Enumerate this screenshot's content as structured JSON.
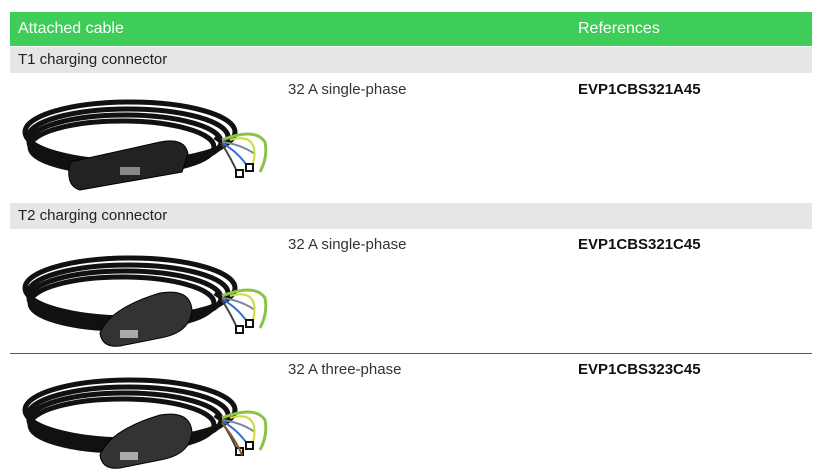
{
  "header": {
    "columns": [
      "Attached cable",
      "References"
    ]
  },
  "sections": [
    {
      "title": "T1 charging connector",
      "rows": [
        {
          "description": "32 A single-phase",
          "reference": "EVP1CBS321A45"
        }
      ]
    },
    {
      "title": "T2 charging connector",
      "rows": [
        {
          "description": "32 A single-phase",
          "reference": "EVP1CBS321C45"
        },
        {
          "description": "32 A three-phase",
          "reference": "EVP1CBS323C45"
        }
      ]
    }
  ]
}
